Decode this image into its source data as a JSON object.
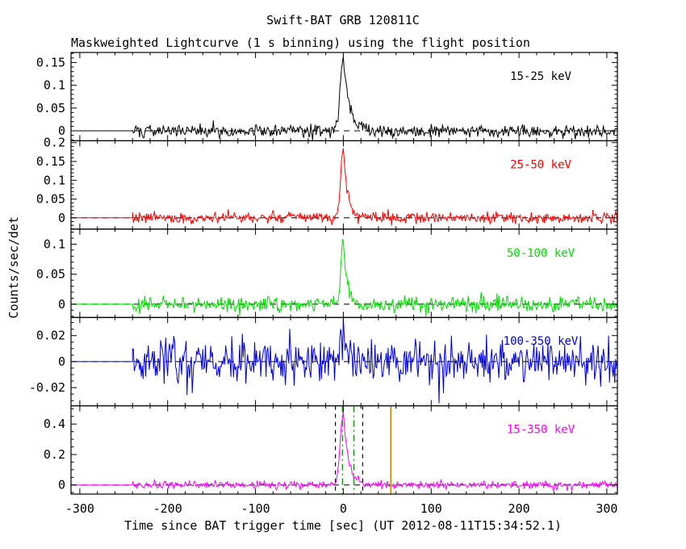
{
  "title": "Swift-BAT GRB 120811C",
  "subtitle": "Maskweighted Lightcurve (1 s binning) using the flight position",
  "ylabel": "Counts/sec/det",
  "xlabel": "Time since BAT trigger time [sec] (UT 2012-08-11T15:34:52.1)",
  "chart_data": {
    "type": "line",
    "x_range": [
      -310,
      312
    ],
    "x_ticks": [
      -300,
      -200,
      -100,
      0,
      100,
      200,
      300
    ],
    "x_tick_labels": [
      "-300",
      "-200",
      "-100",
      "0",
      "100",
      "200",
      "300"
    ],
    "x_minor_step": 20,
    "data_start": -240,
    "bin_sec": 1,
    "peak_time": 0,
    "axis_color": "#000000",
    "panels": [
      {
        "name": "15-25 keV",
        "color": "#000000",
        "seed": 101,
        "ylim": [
          -0.022,
          0.172
        ],
        "yticks": [
          0,
          0.05,
          0.1,
          0.15
        ],
        "ytick_labels": [
          "0",
          "0.05",
          "0.1",
          "0.15"
        ],
        "yminor": 0.01,
        "noise": 0.007,
        "peak": 0.16,
        "rise": 3.5,
        "decay": 7
      },
      {
        "name": "25-50 keV",
        "color": "#ff0000",
        "seed": 202,
        "ylim": [
          -0.03,
          0.205
        ],
        "yticks": [
          0,
          0.05,
          0.1,
          0.15,
          0.2
        ],
        "ytick_labels": [
          "0",
          "0.05",
          "0.1",
          "0.15",
          "0.2"
        ],
        "yminor": 0.01,
        "noise": 0.0075,
        "peak": 0.19,
        "rise": 3.0,
        "decay": 5
      },
      {
        "name": "50-100 keV",
        "color": "#00dd00",
        "seed": 303,
        "ylim": [
          -0.022,
          0.125
        ],
        "yticks": [
          0,
          0.05,
          0.1
        ],
        "ytick_labels": [
          "0",
          "0.05",
          "0.1"
        ],
        "yminor": 0.01,
        "noise": 0.006,
        "peak": 0.11,
        "rise": 2.5,
        "decay": 4
      },
      {
        "name": "100-350 keV",
        "color": "#0000dd",
        "seed": 404,
        "ylim": [
          -0.034,
          0.034
        ],
        "yticks": [
          -0.02,
          0,
          0.02
        ],
        "ytick_labels": [
          "-0.02",
          "0",
          "0.02"
        ],
        "yminor": 0.005,
        "noise": 0.0085,
        "peak": 0.022,
        "rise": 2.5,
        "decay": 4
      },
      {
        "name": "15-350 keV",
        "color": "#ff00ff",
        "seed": 505,
        "ylim": [
          -0.06,
          0.52
        ],
        "yticks": [
          0,
          0.2,
          0.4
        ],
        "ytick_labels": [
          "0",
          "0.2",
          "0.4"
        ],
        "yminor": 0.05,
        "noise": 0.013,
        "peak": 0.47,
        "rise": 3.5,
        "decay": 6
      }
    ],
    "markers": {
      "dashed_black_t": [
        -9,
        22
      ],
      "dashdot_green_t": [
        -1,
        12
      ],
      "solid_orange_t": [
        54
      ],
      "green_color": "#008800",
      "orange_color": "#cc8800"
    }
  }
}
